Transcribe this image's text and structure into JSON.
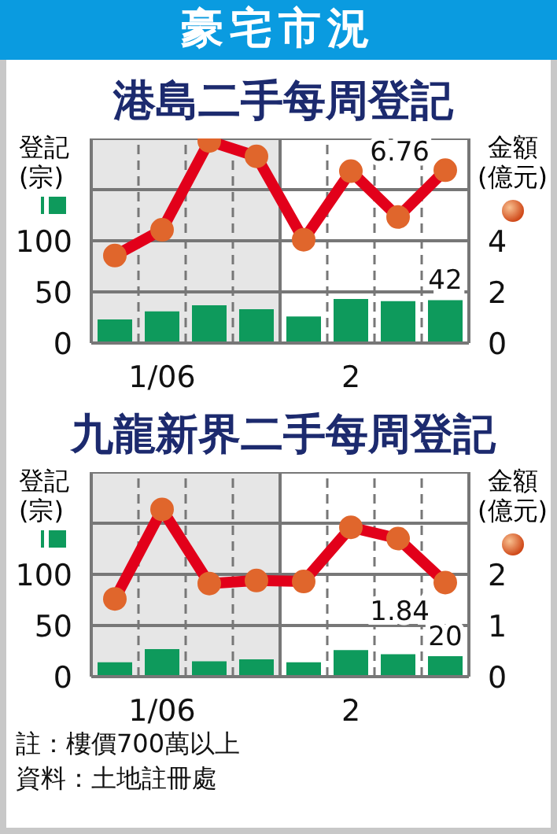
{
  "chart_data": [
    {
      "type": "bar",
      "title": "豪宅市況",
      "subtitle": "港島二手每周登記",
      "ylabel": "登記\n(宗)",
      "y2label": "金額\n(億元)",
      "categories": [
        null,
        "1/06",
        null,
        null,
        null,
        "2",
        null,
        null
      ],
      "ylim": [
        0,
        200
      ],
      "yticks": [
        0,
        50,
        100
      ],
      "y2lim": [
        0,
        8
      ],
      "y2ticks": [
        0,
        2,
        4
      ],
      "grid": true,
      "marker": "circle",
      "series": [
        {
          "type": "bar",
          "color": "#0e9a5c",
          "values": [
            23,
            31,
            37,
            33,
            26,
            43,
            41,
            42
          ],
          "value_labels": [
            null,
            null,
            null,
            null,
            null,
            null,
            null,
            "42"
          ]
        },
        {
          "type": "line",
          "axis": "y2",
          "color": "#e2001a",
          "values": [
            3.42,
            4.43,
            7.9,
            7.3,
            4.04,
            6.72,
            4.93,
            6.76
          ],
          "value_labels": [
            null,
            null,
            null,
            null,
            null,
            null,
            null,
            "6.76"
          ]
        }
      ]
    },
    {
      "type": "bar",
      "title": "九龍新界二手每周登記",
      "ylabel": "登記\n(宗)",
      "y2label": "金額\n(億元)",
      "categories": [
        null,
        "1/06",
        null,
        null,
        null,
        "2",
        null,
        null
      ],
      "ylim": [
        0,
        200
      ],
      "yticks": [
        0,
        50,
        100
      ],
      "y2lim": [
        0,
        4
      ],
      "y2ticks": [
        0,
        1,
        2
      ],
      "grid": true,
      "marker": "circle",
      "annotations": [
        "註：樓價700萬以上",
        "資料：土地註冊處"
      ],
      "series": [
        {
          "type": "bar",
          "color": "#0e9a5c",
          "values": [
            14,
            27,
            15,
            17,
            14,
            26,
            22,
            20
          ],
          "value_labels": [
            null,
            null,
            null,
            null,
            null,
            null,
            null,
            "20"
          ]
        },
        {
          "type": "line",
          "axis": "y2",
          "color": "#e2001a",
          "values": [
            1.52,
            3.27,
            1.82,
            1.88,
            1.86,
            2.92,
            2.7,
            1.84
          ],
          "value_labels": [
            null,
            null,
            null,
            null,
            null,
            null,
            null,
            "1.84"
          ]
        }
      ]
    }
  ]
}
